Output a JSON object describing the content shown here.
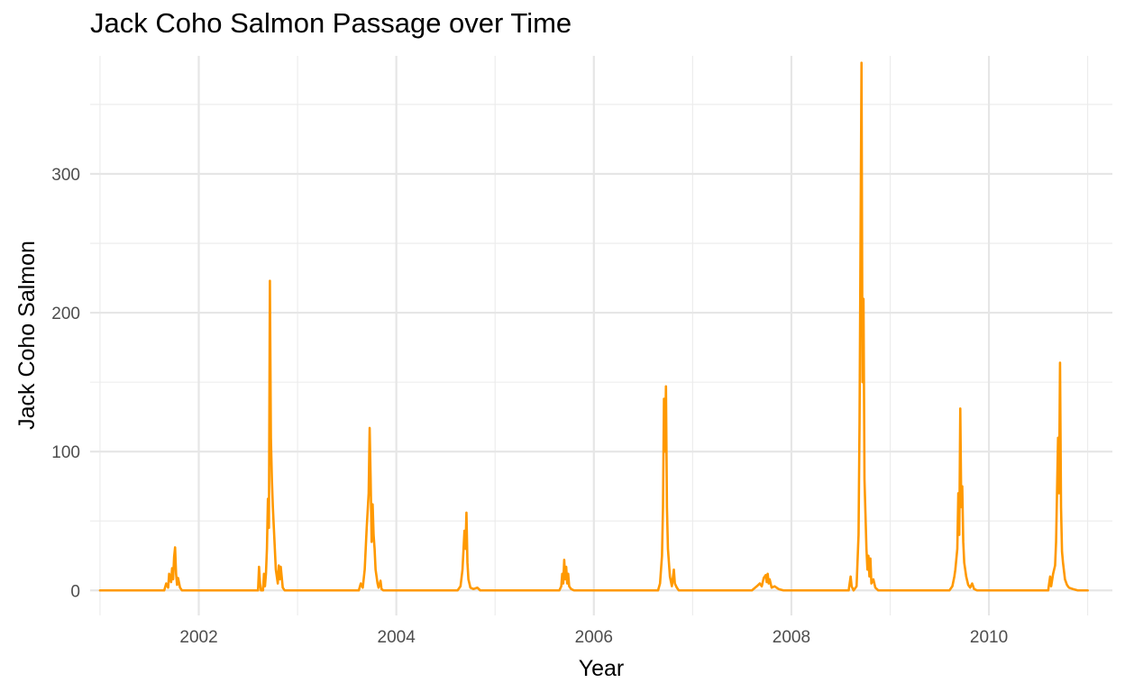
{
  "chart_data": {
    "type": "line",
    "title": "Jack Coho Salmon Passage over Time",
    "xlabel": "Year",
    "ylabel": "Jack Coho Salmon",
    "xlim": [
      2000.9,
      2011.25
    ],
    "ylim": [
      -18,
      385
    ],
    "x_ticks": [
      2002,
      2004,
      2006,
      2008,
      2010
    ],
    "x_tick_labels": [
      "2002",
      "2004",
      "2006",
      "2008",
      "2010"
    ],
    "x_minor_ticks": [
      2001,
      2003,
      2005,
      2007,
      2009,
      2011
    ],
    "y_ticks": [
      0,
      100,
      200,
      300
    ],
    "y_tick_labels": [
      "0",
      "100",
      "200",
      "300"
    ],
    "y_minor_ticks": [
      50,
      150,
      250,
      350
    ],
    "grid": true,
    "legend": "none",
    "series": [
      {
        "color": "#FF9900",
        "points": [
          [
            2001.0,
            0
          ],
          [
            2001.65,
            0
          ],
          [
            2001.67,
            5
          ],
          [
            2001.69,
            2
          ],
          [
            2001.7,
            12
          ],
          [
            2001.72,
            6
          ],
          [
            2001.73,
            16
          ],
          [
            2001.74,
            8
          ],
          [
            2001.75,
            24
          ],
          [
            2001.76,
            31
          ],
          [
            2001.77,
            12
          ],
          [
            2001.78,
            4
          ],
          [
            2001.79,
            9
          ],
          [
            2001.81,
            2
          ],
          [
            2001.83,
            0
          ],
          [
            2002.6,
            0
          ],
          [
            2002.61,
            17
          ],
          [
            2002.62,
            5
          ],
          [
            2002.63,
            0
          ],
          [
            2002.65,
            0
          ],
          [
            2002.66,
            12
          ],
          [
            2002.67,
            3
          ],
          [
            2002.68,
            12
          ],
          [
            2002.69,
            30
          ],
          [
            2002.7,
            66
          ],
          [
            2002.71,
            45
          ],
          [
            2002.72,
            223
          ],
          [
            2002.73,
            110
          ],
          [
            2002.74,
            80
          ],
          [
            2002.75,
            60
          ],
          [
            2002.76,
            45
          ],
          [
            2002.77,
            30
          ],
          [
            2002.78,
            15
          ],
          [
            2002.8,
            5
          ],
          [
            2002.81,
            18
          ],
          [
            2002.82,
            8
          ],
          [
            2002.83,
            17
          ],
          [
            2002.85,
            2
          ],
          [
            2002.87,
            0
          ],
          [
            2003.62,
            0
          ],
          [
            2003.64,
            5
          ],
          [
            2003.66,
            2
          ],
          [
            2003.68,
            15
          ],
          [
            2003.7,
            45
          ],
          [
            2003.72,
            70
          ],
          [
            2003.73,
            117
          ],
          [
            2003.74,
            80
          ],
          [
            2003.75,
            35
          ],
          [
            2003.76,
            62
          ],
          [
            2003.77,
            40
          ],
          [
            2003.78,
            30
          ],
          [
            2003.79,
            15
          ],
          [
            2003.81,
            5
          ],
          [
            2003.82,
            2
          ],
          [
            2003.84,
            7
          ],
          [
            2003.85,
            1
          ],
          [
            2003.87,
            0
          ],
          [
            2004.62,
            0
          ],
          [
            2004.65,
            3
          ],
          [
            2004.67,
            15
          ],
          [
            2004.69,
            43
          ],
          [
            2004.7,
            30
          ],
          [
            2004.71,
            56
          ],
          [
            2004.72,
            20
          ],
          [
            2004.73,
            8
          ],
          [
            2004.75,
            2
          ],
          [
            2004.78,
            1
          ],
          [
            2004.82,
            2
          ],
          [
            2004.85,
            0
          ],
          [
            2005.65,
            0
          ],
          [
            2005.67,
            3
          ],
          [
            2005.68,
            12
          ],
          [
            2005.69,
            5
          ],
          [
            2005.7,
            22
          ],
          [
            2005.71,
            8
          ],
          [
            2005.72,
            17
          ],
          [
            2005.73,
            5
          ],
          [
            2005.74,
            12
          ],
          [
            2005.75,
            3
          ],
          [
            2005.77,
            1
          ],
          [
            2005.8,
            0
          ],
          [
            2006.65,
            0
          ],
          [
            2006.67,
            5
          ],
          [
            2006.69,
            25
          ],
          [
            2006.7,
            60
          ],
          [
            2006.71,
            138
          ],
          [
            2006.72,
            100
          ],
          [
            2006.73,
            147
          ],
          [
            2006.74,
            60
          ],
          [
            2006.75,
            30
          ],
          [
            2006.77,
            10
          ],
          [
            2006.79,
            3
          ],
          [
            2006.81,
            15
          ],
          [
            2006.82,
            5
          ],
          [
            2006.84,
            2
          ],
          [
            2006.86,
            0
          ],
          [
            2007.6,
            0
          ],
          [
            2007.65,
            3
          ],
          [
            2007.68,
            5
          ],
          [
            2007.7,
            3
          ],
          [
            2007.72,
            9
          ],
          [
            2007.74,
            11
          ],
          [
            2007.75,
            6
          ],
          [
            2007.76,
            12
          ],
          [
            2007.77,
            5
          ],
          [
            2007.78,
            8
          ],
          [
            2007.8,
            2
          ],
          [
            2007.83,
            3
          ],
          [
            2007.87,
            1
          ],
          [
            2007.92,
            0
          ],
          [
            2008.58,
            0
          ],
          [
            2008.6,
            10
          ],
          [
            2008.61,
            3
          ],
          [
            2008.63,
            0
          ],
          [
            2008.66,
            3
          ],
          [
            2008.68,
            40
          ],
          [
            2008.69,
            120
          ],
          [
            2008.7,
            250
          ],
          [
            2008.71,
            380
          ],
          [
            2008.72,
            150
          ],
          [
            2008.73,
            210
          ],
          [
            2008.74,
            80
          ],
          [
            2008.75,
            55
          ],
          [
            2008.76,
            30
          ],
          [
            2008.77,
            15
          ],
          [
            2008.78,
            25
          ],
          [
            2008.79,
            10
          ],
          [
            2008.8,
            23
          ],
          [
            2008.81,
            5
          ],
          [
            2008.83,
            8
          ],
          [
            2008.85,
            2
          ],
          [
            2008.88,
            0
          ],
          [
            2009.6,
            0
          ],
          [
            2009.63,
            3
          ],
          [
            2009.65,
            10
          ],
          [
            2009.66,
            15
          ],
          [
            2009.68,
            30
          ],
          [
            2009.69,
            70
          ],
          [
            2009.7,
            40
          ],
          [
            2009.71,
            131
          ],
          [
            2009.72,
            60
          ],
          [
            2009.73,
            75
          ],
          [
            2009.74,
            35
          ],
          [
            2009.75,
            20
          ],
          [
            2009.77,
            10
          ],
          [
            2009.79,
            4
          ],
          [
            2009.81,
            2
          ],
          [
            2009.83,
            5
          ],
          [
            2009.85,
            1
          ],
          [
            2009.88,
            0
          ],
          [
            2010.6,
            0
          ],
          [
            2010.62,
            10
          ],
          [
            2010.63,
            3
          ],
          [
            2010.65,
            12
          ],
          [
            2010.67,
            18
          ],
          [
            2010.68,
            35
          ],
          [
            2010.7,
            110
          ],
          [
            2010.71,
            70
          ],
          [
            2010.72,
            164
          ],
          [
            2010.73,
            60
          ],
          [
            2010.74,
            28
          ],
          [
            2010.75,
            20
          ],
          [
            2010.77,
            8
          ],
          [
            2010.79,
            4
          ],
          [
            2010.81,
            2
          ],
          [
            2010.85,
            1
          ],
          [
            2010.9,
            0
          ],
          [
            2011.0,
            0
          ]
        ]
      }
    ]
  }
}
